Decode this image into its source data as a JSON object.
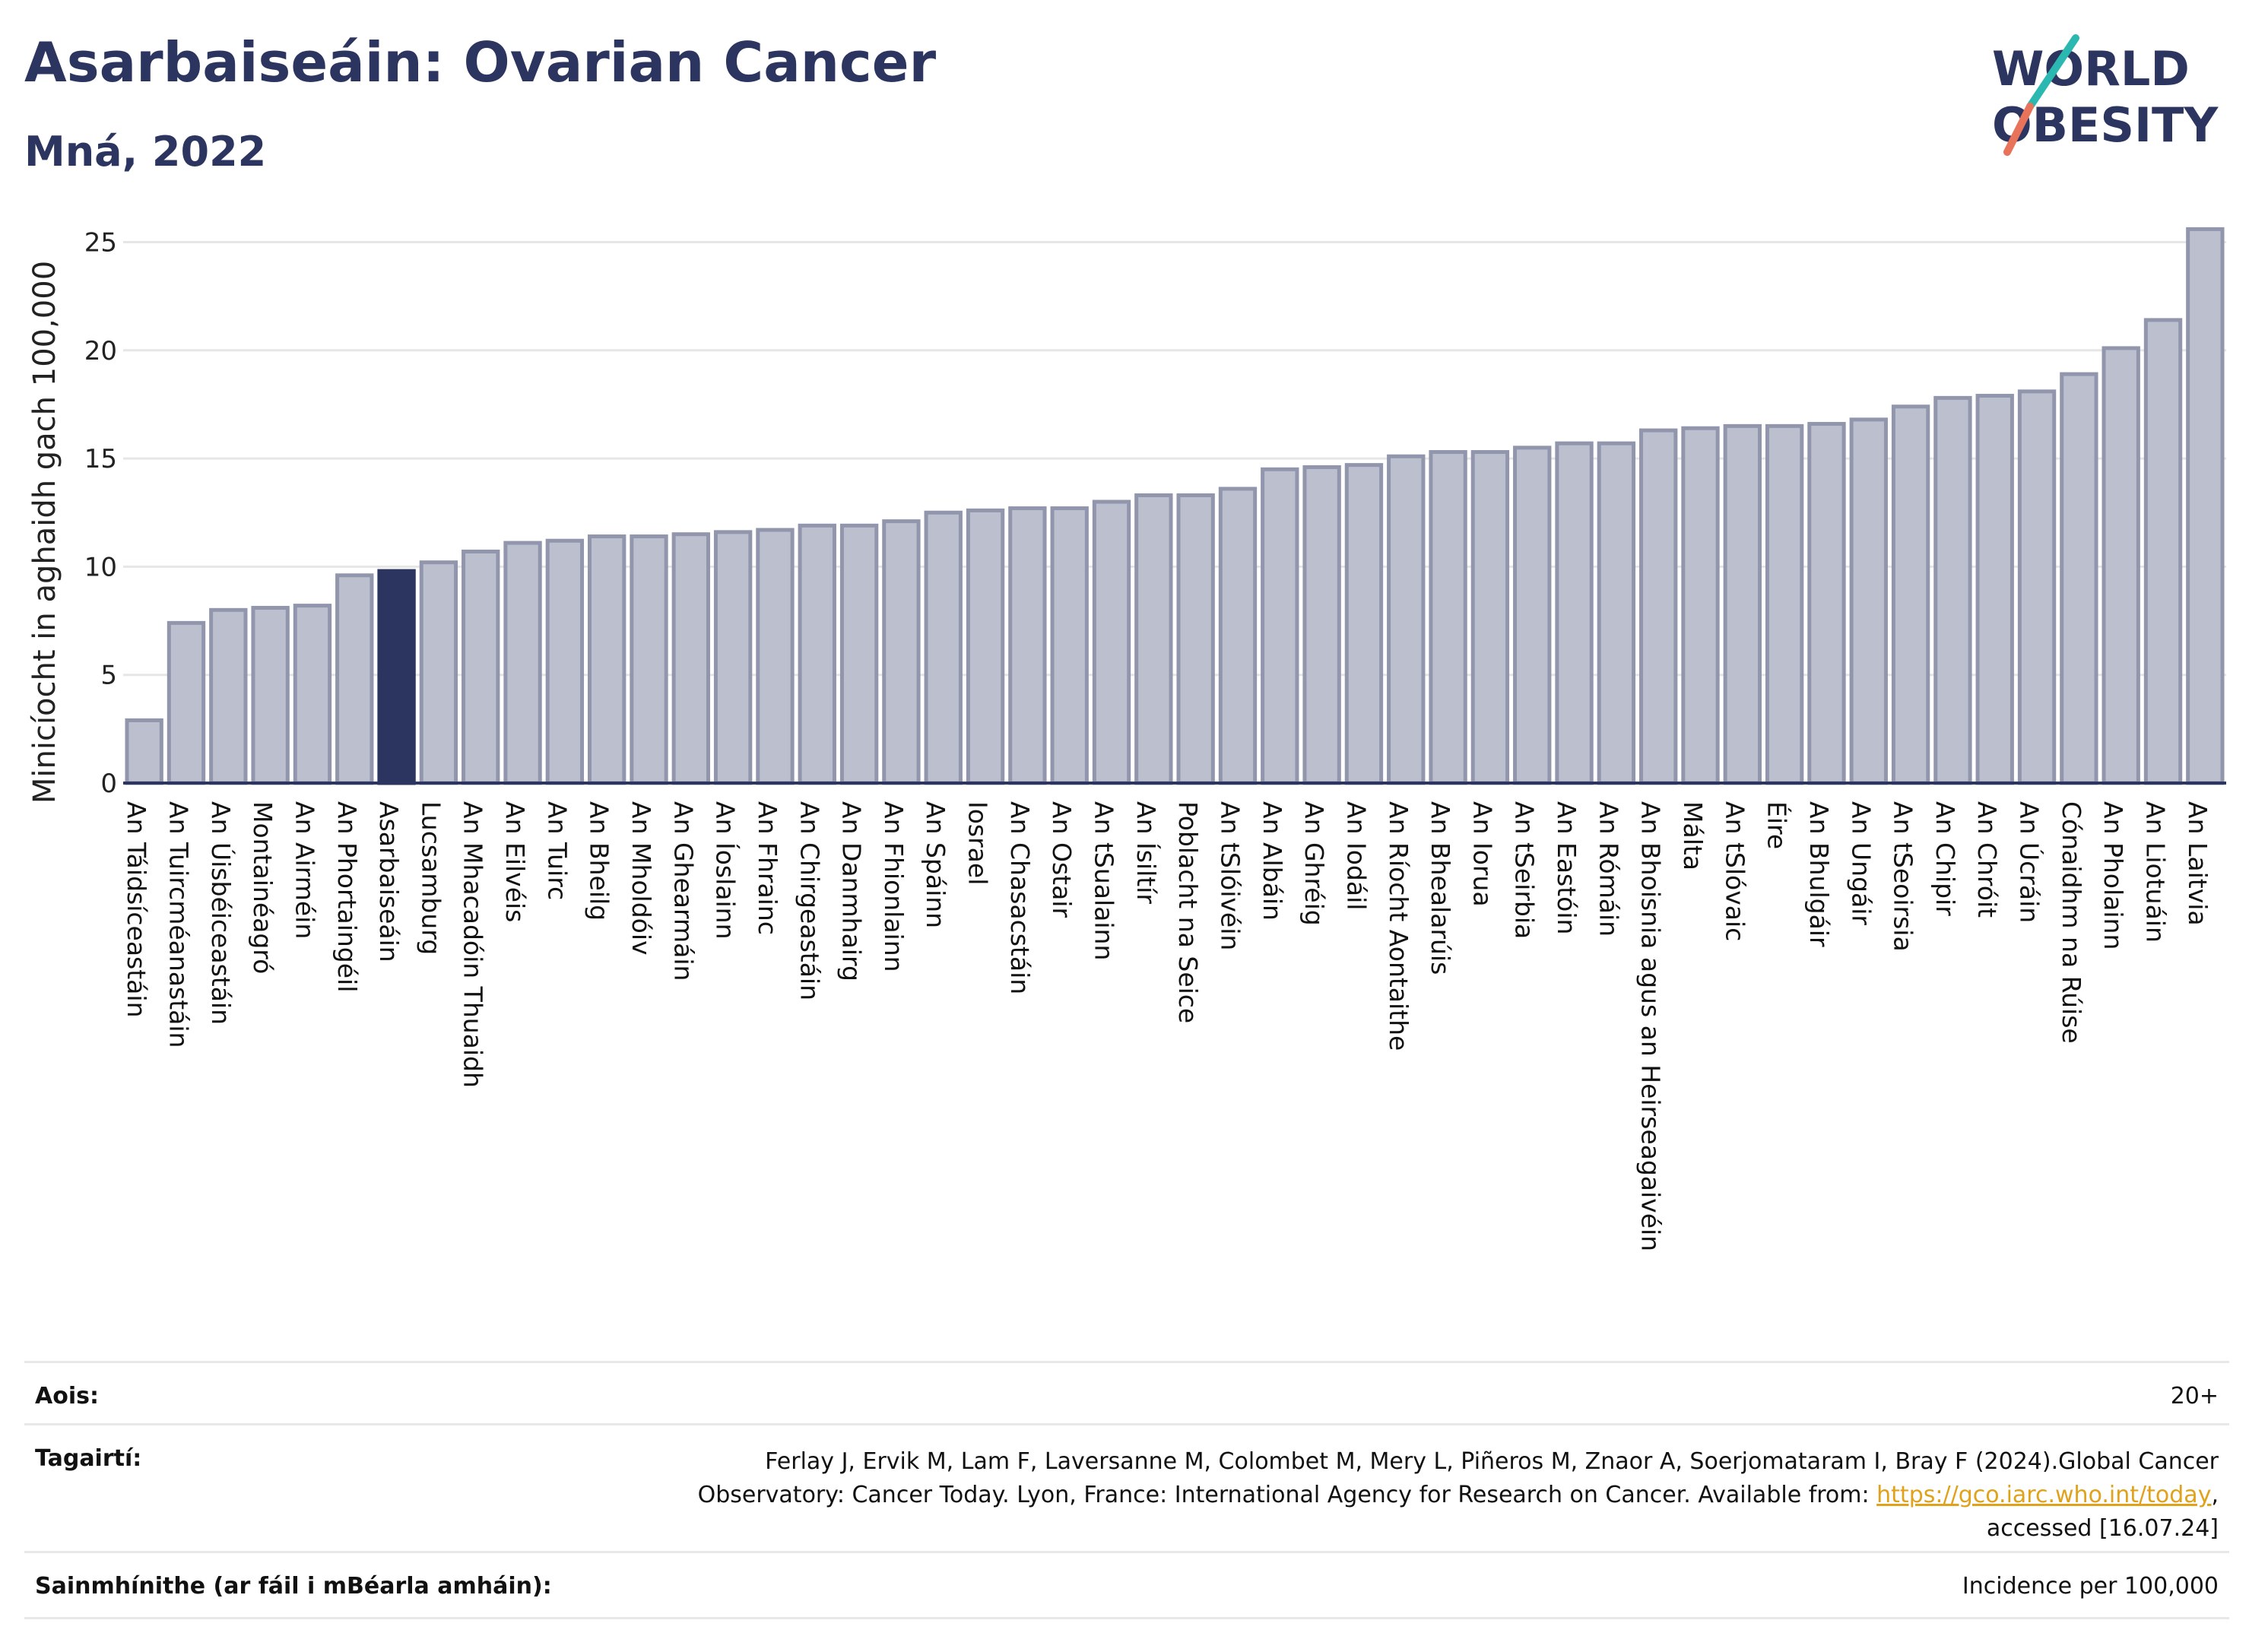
{
  "header": {
    "title": "Asarbaiseáin: Ovarian Cancer",
    "subtitle": "Mná, 2022",
    "logo_line1": "WORLD",
    "logo_line2": "OBESITY"
  },
  "colors": {
    "bar": "#bcbfce",
    "bar_edge": "#9196ad",
    "highlight": "#2b3560",
    "title": "#2b3560",
    "grid": "#e6e6e6",
    "link": "#e0a21b"
  },
  "chart_data": {
    "type": "bar",
    "ylabel": "Minicíocht in aghaidh gach 100,000",
    "ylim": [
      0,
      26
    ],
    "yticks": [
      0,
      5,
      10,
      15,
      20,
      25
    ],
    "grid": true,
    "highlight_category": "Asarbaiseáin",
    "categories": [
      "An Táidsíceastáin",
      "An Tuircméanastáin",
      "An Úisbéiceastáin",
      "Montainéagró",
      "An Airméin",
      "An Phortaingéil",
      "Asarbaiseáin",
      "Lucsamburg",
      "An Mhacadóin Thuaidh",
      "An Eilvéis",
      "An Tuirc",
      "An Bheilg",
      "An Mholdóiv",
      "An Ghearmáin",
      "An Íoslainn",
      "An Fhrainc",
      "An Chirgeastáin",
      "An Danmhairg",
      "An Fhionlainn",
      "An Spáinn",
      "Iosrael",
      "An Chasacstáin",
      "An Ostair",
      "An tSualainn",
      "An Ísiltír",
      "Poblacht na Seice",
      "An tSlóivéin",
      "An Albáin",
      "An Ghréig",
      "An Iodáil",
      "An Ríocht Aontaithe",
      "An Bhealarúis",
      "An Iorua",
      "An tSeirbia",
      "An Eastóin",
      "An Rómáin",
      "An Bhoisnia agus an Heirseagaivéin",
      "Málta",
      "An tSlóvaic",
      "Éire",
      "An Bhulgáir",
      "An Ungáir",
      "An tSeoirsia",
      "An Chipir",
      "An Chróit",
      "An Úcráin",
      "Cónaidhm na Rúise",
      "An Pholainn",
      "An Liotuáin",
      "An Laitvia"
    ],
    "values": [
      2.9,
      7.4,
      8.0,
      8.1,
      8.2,
      9.6,
      9.8,
      10.2,
      10.7,
      11.1,
      11.2,
      11.4,
      11.4,
      11.5,
      11.6,
      11.7,
      11.9,
      11.9,
      12.1,
      12.5,
      12.6,
      12.7,
      12.7,
      13.0,
      13.3,
      13.3,
      13.6,
      14.5,
      14.6,
      14.7,
      15.1,
      15.3,
      15.3,
      15.5,
      15.7,
      15.7,
      16.3,
      16.4,
      16.5,
      16.5,
      16.6,
      16.8,
      17.4,
      17.8,
      17.9,
      18.1,
      18.9,
      20.1,
      21.4,
      25.6
    ]
  },
  "info": {
    "age_label": "Aois:",
    "age_value": "20+",
    "ref_label": "Tagairtí:",
    "ref_line1": "Ferlay J, Ervik M, Lam F, Laversanne M, Colombet M, Mery L, Piñeros M, Znaor A, Soerjomataram I, Bray F (2024).Global Cancer",
    "ref_line2_pre": "Observatory: Cancer Today. Lyon, France: International Agency for Research on Cancer. Available from: ",
    "ref_link": "https://gco.iarc.who.int/today",
    "ref_line2_post": ",",
    "ref_line3": "accessed [16.07.24]",
    "def_label": "Sainmhínithe (ar fáil i mBéarla amháin):",
    "def_value": "Incidence per 100,000"
  }
}
